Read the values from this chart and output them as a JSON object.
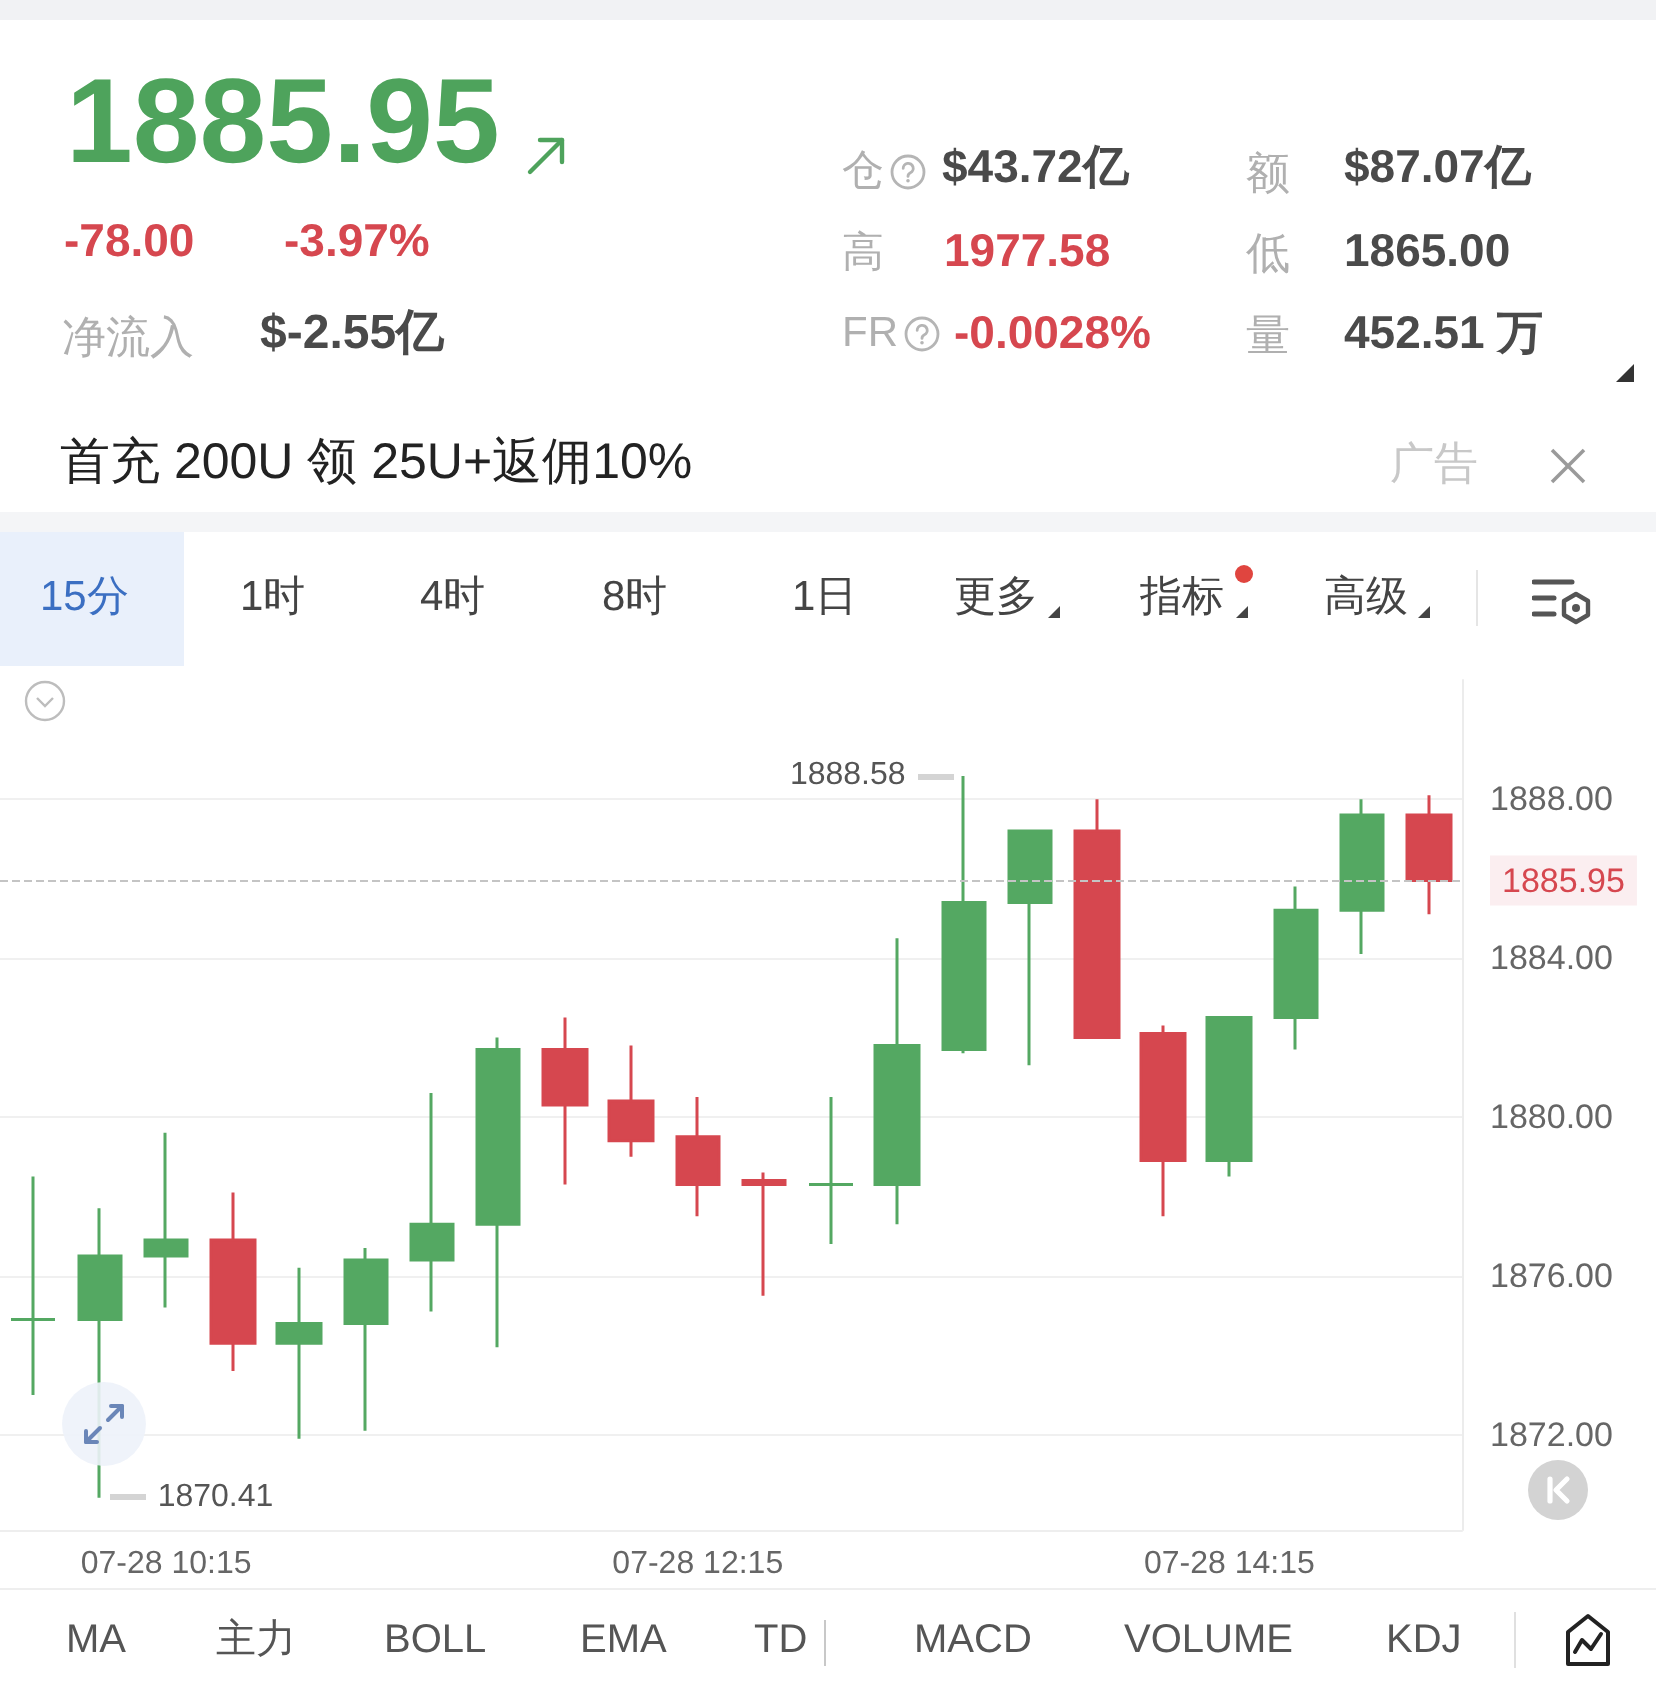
{
  "chart_data": {
    "type": "candlestick",
    "title": "1885.95",
    "annotations": [
      "-78.00",
      "-3.97%",
      "净流入",
      "$-2.55亿",
      "仓",
      "$43.72亿",
      "额",
      "$87.07亿",
      "高",
      "1977.58",
      "低",
      "1865.00",
      "FR",
      "-0.0028%",
      "量",
      "452.51 万",
      "首充 200U 领 25U+返佣10%",
      "广告",
      "15分",
      "1时",
      "4时",
      "8时",
      "1日",
      "更多",
      "指标",
      "高级",
      "MA",
      "主力",
      "BOLL",
      "EMA",
      "TD",
      "MACD",
      "VOLUME",
      "KDJ",
      "1888.58",
      "1870.41"
    ],
    "categories": [
      null,
      null,
      "07-28 10:15",
      null,
      null,
      null,
      null,
      null,
      null,
      null,
      "07-28 12:15",
      null,
      null,
      null,
      null,
      null,
      null,
      null,
      "07-28 14:15",
      null,
      null,
      null
    ],
    "ohlc": [
      [
        1874.9,
        1878.5,
        1873.0,
        1874.9
      ],
      [
        1874.9,
        1877.7,
        1870.41,
        1876.5
      ],
      [
        1876.5,
        1879.6,
        1875.2,
        1876.9
      ],
      [
        1876.9,
        1878.1,
        1873.6,
        1874.3
      ],
      [
        1874.3,
        1876.2,
        1871.9,
        1874.8
      ],
      [
        1874.8,
        1876.7,
        1872.1,
        1876.4
      ],
      [
        1876.4,
        1880.6,
        1875.1,
        1877.3
      ],
      [
        1877.3,
        1882.0,
        1874.2,
        1881.7
      ],
      [
        1881.7,
        1882.5,
        1878.3,
        1880.3
      ],
      [
        1880.4,
        1881.8,
        1879.0,
        1879.4
      ],
      [
        1879.5,
        1880.5,
        1877.5,
        1878.3
      ],
      [
        1878.4,
        1878.6,
        1875.5,
        1878.3
      ],
      [
        1878.3,
        1880.5,
        1876.8,
        1878.3
      ],
      [
        1878.3,
        1884.5,
        1877.3,
        1881.8
      ],
      [
        1881.7,
        1888.58,
        1881.6,
        1885.4
      ],
      [
        1885.4,
        1887.2,
        1881.3,
        1887.2
      ],
      [
        1887.2,
        1888.0,
        1882.0,
        1882.0
      ],
      [
        1882.1,
        1882.3,
        1877.5,
        1878.9
      ],
      [
        1878.9,
        1882.5,
        1878.5,
        1882.5
      ],
      [
        1882.5,
        1885.8,
        1881.7,
        1885.2
      ],
      [
        1885.2,
        1888.0,
        1884.1,
        1887.6
      ],
      [
        1887.6,
        1888.1,
        1885.1,
        1885.95
      ]
    ],
    "colors": [
      "#54a862",
      "#54a862",
      "#54a862",
      "#d6474f",
      "#54a862",
      "#54a862",
      "#54a862",
      "#54a862",
      "#d6474f",
      "#d6474f",
      "#d6474f",
      "#d6474f",
      "#54a862",
      "#54a862",
      "#54a862",
      "#54a862",
      "#d6474f",
      "#d6474f",
      "#54a862",
      "#54a862",
      "#54a862",
      "#d6474f"
    ],
    "ylim": [
      1869.6,
      1891.0
    ],
    "yticks": [
      {
        "value": 1872,
        "label": "1872.00"
      },
      {
        "value": 1876,
        "label": "1876.00"
      },
      {
        "value": 1880,
        "label": "1880.00"
      },
      {
        "value": 1884,
        "label": "1884.00"
      },
      {
        "value": 1888,
        "label": "1888.00"
      }
    ],
    "grid": "y",
    "ref_lines": [
      {
        "axis": "y",
        "value": 1885.95,
        "label": "1885.95",
        "line_style": "dashed"
      }
    ]
  }
}
